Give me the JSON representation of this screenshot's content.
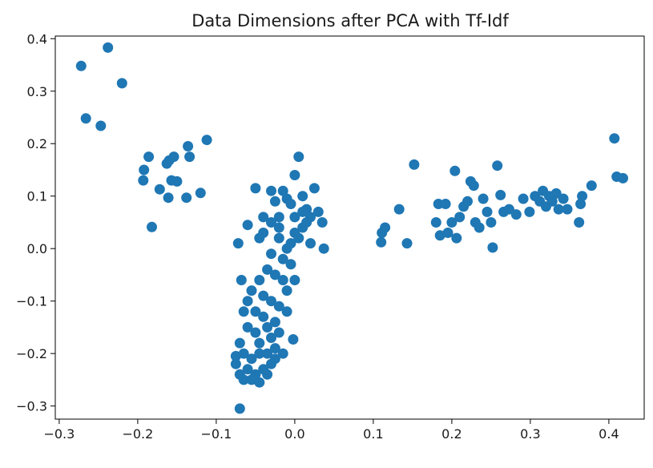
{
  "chart_data": {
    "type": "scatter",
    "title": "Data Dimensions after PCA with Tf-Idf",
    "xlabel": "",
    "ylabel": "",
    "xlim": [
      -0.305,
      0.445
    ],
    "ylim": [
      -0.325,
      0.405
    ],
    "grid": false,
    "legend": "none",
    "marker_color": "#1f77b4",
    "x_ticks": [
      {
        "value": -0.3,
        "label": "−0.3"
      },
      {
        "value": -0.2,
        "label": "−0.2"
      },
      {
        "value": -0.1,
        "label": "−0.1"
      },
      {
        "value": 0.0,
        "label": "0.0"
      },
      {
        "value": 0.1,
        "label": "0.1"
      },
      {
        "value": 0.2,
        "label": "0.2"
      },
      {
        "value": 0.3,
        "label": "0.3"
      },
      {
        "value": 0.4,
        "label": "0.4"
      }
    ],
    "y_ticks": [
      {
        "value": 0.4,
        "label": "0.4"
      },
      {
        "value": 0.3,
        "label": "0.3"
      },
      {
        "value": 0.2,
        "label": "0.2"
      },
      {
        "value": 0.1,
        "label": "0.1"
      },
      {
        "value": 0.0,
        "label": "0.0"
      },
      {
        "value": -0.1,
        "label": "−0.1"
      },
      {
        "value": -0.2,
        "label": "−0.2"
      },
      {
        "value": -0.3,
        "label": "−0.3"
      }
    ],
    "series": [
      {
        "points": [
          [
            -0.272,
            0.348
          ],
          [
            -0.238,
            0.383
          ],
          [
            -0.22,
            0.315
          ],
          [
            -0.266,
            0.248
          ],
          [
            -0.247,
            0.234
          ],
          [
            -0.186,
            0.175
          ],
          [
            -0.192,
            0.15
          ],
          [
            -0.193,
            0.13
          ],
          [
            -0.172,
            0.113
          ],
          [
            -0.163,
            0.162
          ],
          [
            -0.16,
            0.168
          ],
          [
            -0.154,
            0.175
          ],
          [
            -0.157,
            0.13
          ],
          [
            -0.15,
            0.128
          ],
          [
            -0.161,
            0.097
          ],
          [
            -0.138,
            0.097
          ],
          [
            -0.136,
            0.195
          ],
          [
            -0.134,
            0.175
          ],
          [
            -0.112,
            0.207
          ],
          [
            -0.12,
            0.106
          ],
          [
            -0.182,
            0.041
          ],
          [
            -0.072,
            0.01
          ],
          [
            -0.06,
            0.045
          ],
          [
            -0.05,
            0.115
          ],
          [
            -0.045,
            0.02
          ],
          [
            -0.04,
            0.03
          ],
          [
            -0.03,
            0.11
          ],
          [
            -0.025,
            0.09
          ],
          [
            -0.02,
            0.06
          ],
          [
            -0.015,
            0.11
          ],
          [
            -0.01,
            0.095
          ],
          [
            -0.005,
            0.085
          ],
          [
            0.0,
            0.14
          ],
          [
            0.005,
            0.175
          ],
          [
            0.01,
            0.1
          ],
          [
            0.015,
            0.075
          ],
          [
            0.02,
            0.06
          ],
          [
            0.025,
            0.115
          ],
          [
            0.03,
            0.07
          ],
          [
            0.035,
            0.05
          ],
          [
            0.037,
            0.0
          ],
          [
            -0.02,
            0.02
          ],
          [
            -0.01,
            0.0
          ],
          [
            0.0,
            0.03
          ],
          [
            0.01,
            0.04
          ],
          [
            0.02,
            0.01
          ],
          [
            -0.03,
            -0.01
          ],
          [
            -0.015,
            -0.02
          ],
          [
            -0.005,
            0.01
          ],
          [
            0.005,
            0.02
          ],
          [
            0.015,
            0.05
          ],
          [
            -0.035,
            -0.04
          ],
          [
            -0.025,
            -0.05
          ],
          [
            -0.015,
            -0.06
          ],
          [
            -0.005,
            -0.03
          ],
          [
            -0.01,
            -0.08
          ],
          [
            -0.045,
            -0.06
          ],
          [
            -0.04,
            -0.09
          ],
          [
            -0.03,
            -0.1
          ],
          [
            -0.02,
            -0.11
          ],
          [
            -0.055,
            -0.08
          ],
          [
            -0.06,
            -0.1
          ],
          [
            -0.05,
            -0.12
          ],
          [
            -0.04,
            -0.13
          ],
          [
            -0.035,
            -0.15
          ],
          [
            -0.025,
            -0.14
          ],
          [
            -0.065,
            -0.12
          ],
          [
            -0.06,
            -0.15
          ],
          [
            -0.05,
            -0.16
          ],
          [
            -0.045,
            -0.18
          ],
          [
            -0.03,
            -0.17
          ],
          [
            -0.07,
            -0.18
          ],
          [
            -0.065,
            -0.2
          ],
          [
            -0.055,
            -0.21
          ],
          [
            -0.045,
            -0.2
          ],
          [
            -0.035,
            -0.2
          ],
          [
            -0.025,
            -0.19
          ],
          [
            -0.015,
            -0.2
          ],
          [
            -0.075,
            -0.22
          ],
          [
            -0.07,
            -0.24
          ],
          [
            -0.06,
            -0.23
          ],
          [
            -0.05,
            -0.24
          ],
          [
            -0.04,
            -0.23
          ],
          [
            -0.03,
            -0.22
          ],
          [
            -0.065,
            -0.25
          ],
          [
            -0.055,
            -0.25
          ],
          [
            -0.045,
            -0.255
          ],
          [
            -0.035,
            -0.24
          ],
          [
            -0.075,
            -0.205
          ],
          [
            -0.025,
            -0.21
          ],
          [
            -0.02,
            -0.16
          ],
          [
            -0.01,
            -0.12
          ],
          [
            0.0,
            -0.06
          ],
          [
            -0.002,
            -0.173
          ],
          [
            -0.07,
            -0.305
          ],
          [
            -0.068,
            -0.06
          ],
          [
            -0.03,
            0.05
          ],
          [
            -0.04,
            0.06
          ],
          [
            -0.02,
            0.04
          ],
          [
            0.0,
            0.06
          ],
          [
            0.01,
            0.07
          ],
          [
            0.11,
            0.012
          ],
          [
            0.111,
            0.03
          ],
          [
            0.115,
            0.04
          ],
          [
            0.133,
            0.075
          ],
          [
            0.143,
            0.01
          ],
          [
            0.152,
            0.16
          ],
          [
            0.18,
            0.05
          ],
          [
            0.183,
            0.085
          ],
          [
            0.192,
            0.085
          ],
          [
            0.185,
            0.025
          ],
          [
            0.195,
            0.03
          ],
          [
            0.2,
            0.05
          ],
          [
            0.204,
            0.148
          ],
          [
            0.206,
            0.02
          ],
          [
            0.21,
            0.06
          ],
          [
            0.215,
            0.08
          ],
          [
            0.22,
            0.09
          ],
          [
            0.224,
            0.128
          ],
          [
            0.228,
            0.12
          ],
          [
            0.23,
            0.05
          ],
          [
            0.235,
            0.04
          ],
          [
            0.24,
            0.095
          ],
          [
            0.245,
            0.07
          ],
          [
            0.25,
            0.05
          ],
          [
            0.252,
            0.002
          ],
          [
            0.258,
            0.158
          ],
          [
            0.262,
            0.102
          ],
          [
            0.266,
            0.07
          ],
          [
            0.273,
            0.075
          ],
          [
            0.282,
            0.065
          ],
          [
            0.291,
            0.095
          ],
          [
            0.299,
            0.07
          ],
          [
            0.306,
            0.1
          ],
          [
            0.312,
            0.09
          ],
          [
            0.316,
            0.11
          ],
          [
            0.32,
            0.08
          ],
          [
            0.324,
            0.1
          ],
          [
            0.328,
            0.09
          ],
          [
            0.333,
            0.105
          ],
          [
            0.336,
            0.075
          ],
          [
            0.342,
            0.095
          ],
          [
            0.347,
            0.075
          ],
          [
            0.362,
            0.05
          ],
          [
            0.364,
            0.085
          ],
          [
            0.366,
            0.1
          ],
          [
            0.378,
            0.12
          ],
          [
            0.407,
            0.21
          ],
          [
            0.41,
            0.137
          ],
          [
            0.418,
            0.134
          ]
        ]
      }
    ]
  }
}
